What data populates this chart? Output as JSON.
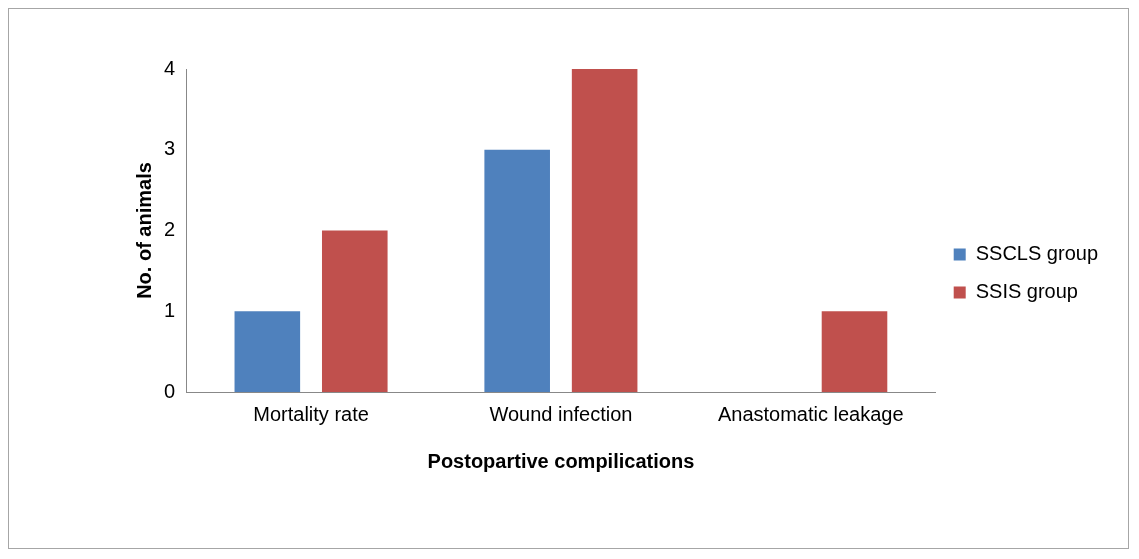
{
  "chart_data": {
    "type": "bar",
    "xlabel": "Postopartive compilications",
    "ylabel": "No. of animals",
    "categories": [
      "Mortality rate",
      "Wound infection",
      "Anastomatic leakage"
    ],
    "series": [
      {
        "name": "SSCLS group",
        "color": "#4f81bd",
        "values": [
          1,
          3,
          0
        ]
      },
      {
        "name": "SSIS group",
        "color": "#c0504d",
        "values": [
          2,
          4,
          1
        ]
      }
    ],
    "ylim": [
      0,
      4
    ],
    "yticks": [
      0,
      1,
      2,
      3,
      4
    ],
    "grid": false,
    "legend": "right"
  }
}
